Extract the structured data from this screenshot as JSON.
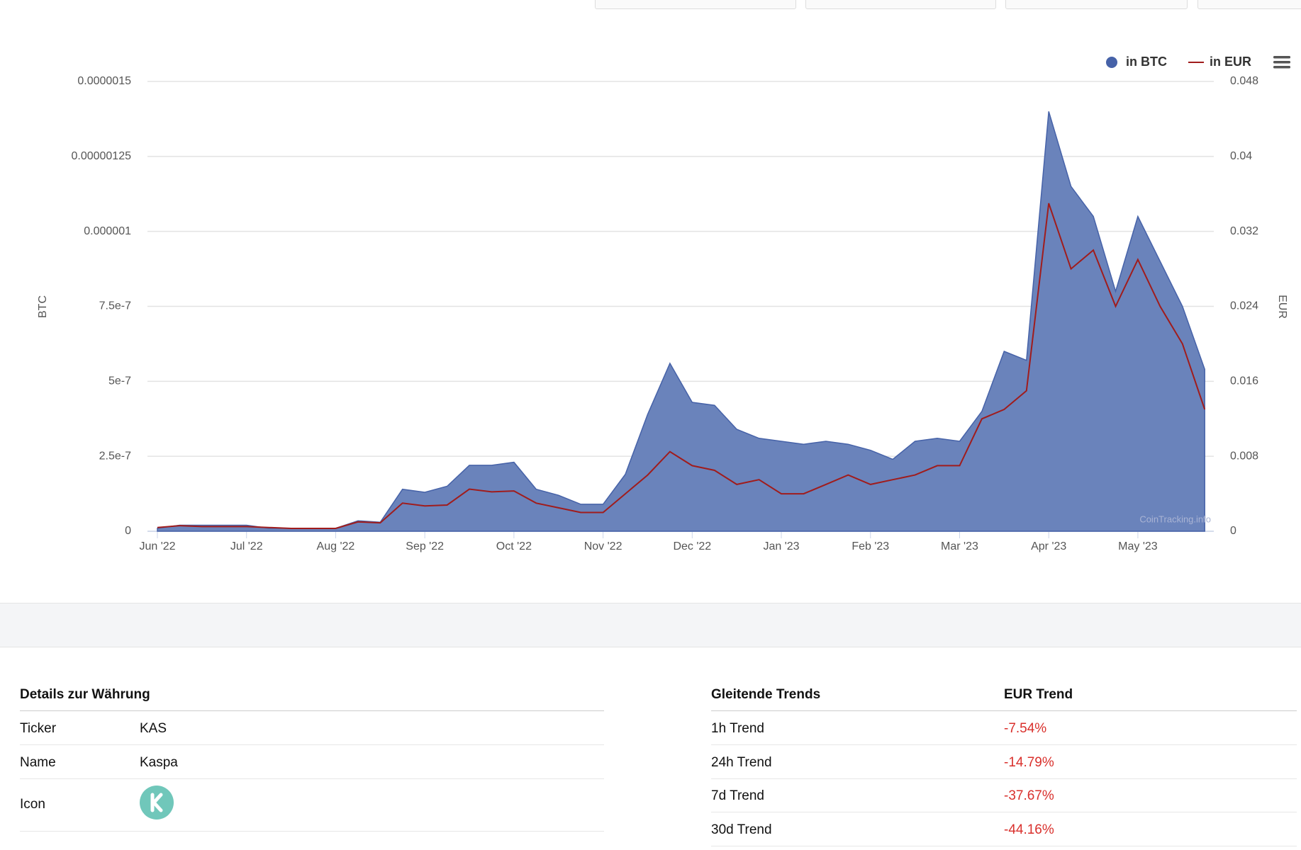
{
  "chart_data": {
    "type": "area",
    "categories": [
      "Jun '22",
      null,
      null,
      null,
      "Jul '22",
      null,
      null,
      null,
      "Aug '22",
      null,
      null,
      null,
      "Sep '22",
      null,
      null,
      null,
      "Oct '22",
      null,
      null,
      null,
      "Nov '22",
      null,
      null,
      null,
      "Dec '22",
      null,
      null,
      null,
      "Jan '23",
      null,
      null,
      null,
      "Feb '23",
      null,
      null,
      null,
      "Mar '23",
      null,
      null,
      null,
      "Apr '23",
      null,
      null,
      null,
      "May '23",
      null,
      null,
      null
    ],
    "series": [
      {
        "name": "in BTC",
        "color": "#6a83bb",
        "values": [
          1e-08,
          2e-08,
          2e-08,
          2e-08,
          2e-08,
          1e-08,
          1e-08,
          1e-08,
          1e-08,
          3.5e-08,
          3e-08,
          1.4e-07,
          1.3e-07,
          1.5e-07,
          2.2e-07,
          2.2e-07,
          2.3e-07,
          1.4e-07,
          1.2e-07,
          9e-08,
          9e-08,
          1.9e-07,
          3.9e-07,
          5.6e-07,
          4.3e-07,
          4.2e-07,
          3.4e-07,
          3.1e-07,
          3e-07,
          2.9e-07,
          3e-07,
          2.9e-07,
          2.7e-07,
          2.4e-07,
          3e-07,
          3.1e-07,
          3e-07,
          4e-07,
          6e-07,
          5.7e-07,
          1.4e-06,
          1.15e-06,
          1.05e-06,
          8e-07,
          1.05e-06,
          9e-07,
          7.5e-07,
          5.4e-07
        ]
      },
      {
        "name": "in EUR",
        "color": "#a01c1c",
        "axis": "y2",
        "values": [
          0.0004,
          0.0006,
          0.0005,
          0.0005,
          0.0005,
          0.0004,
          0.0003,
          0.0003,
          0.0003,
          0.001,
          0.0009,
          0.003,
          0.0027,
          0.0028,
          0.0045,
          0.0042,
          0.0043,
          0.003,
          0.0025,
          0.002,
          0.002,
          0.004,
          0.006,
          0.0085,
          0.007,
          0.0065,
          0.005,
          0.0055,
          0.004,
          0.004,
          0.005,
          0.006,
          0.005,
          0.0055,
          0.006,
          0.007,
          0.007,
          0.012,
          0.013,
          0.015,
          0.035,
          0.028,
          0.03,
          0.024,
          0.029,
          0.024,
          0.02,
          0.013
        ]
      }
    ],
    "ylabel": "BTC",
    "y2label": "EUR",
    "ylim": [
      0,
      1.5e-06
    ],
    "yticks": [
      0,
      {
        "value": 2.5e-07,
        "label": "2.5e-7"
      },
      {
        "value": 5e-07,
        "label": "5e-7"
      },
      {
        "value": 7.5e-07,
        "label": "7.5e-7"
      },
      {
        "value": 1e-06,
        "label": "0.000001"
      },
      {
        "value": 1.25e-06,
        "label": "0.00000125"
      },
      {
        "value": 1.5e-06,
        "label": "0.0000015"
      }
    ],
    "y2lim": [
      0,
      0.048
    ],
    "y2ticks": [
      0,
      0.008,
      0.016,
      0.024,
      0.032,
      0.04,
      0.048
    ],
    "grid": true,
    "legend": "top-right",
    "credit": "CoinTracking.info"
  },
  "details": {
    "title": "Details zur Währung",
    "rows": [
      [
        "Ticker",
        "KAS"
      ],
      [
        "Name",
        "Kaspa"
      ],
      [
        "Icon"
      ]
    ]
  },
  "trends": {
    "headers": [
      "Gleitende Trends",
      "EUR Trend"
    ],
    "rows": [
      [
        "1h Trend",
        "-7.54%"
      ],
      [
        "24h Trend",
        "-14.79%"
      ],
      [
        "7d Trend",
        "-37.67%"
      ],
      [
        "30d Trend",
        "-44.16%"
      ]
    ]
  }
}
